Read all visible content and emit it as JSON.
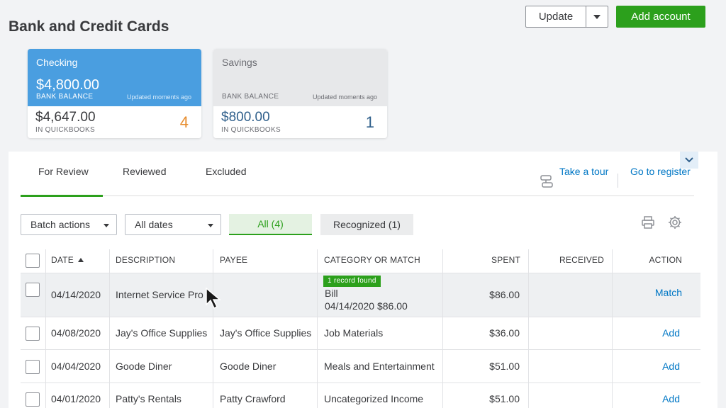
{
  "header": {
    "title": "Bank and Credit Cards",
    "update_label": "Update",
    "add_account_label": "Add account"
  },
  "accounts": [
    {
      "name": "Checking",
      "bank_balance": "$4,800.00",
      "bank_balance_label": "BANK BALANCE",
      "updated": "Updated moments ago",
      "quickbooks_balance": "$4,647.00",
      "quickbooks_label": "IN QUICKBOOKS",
      "count": "4"
    },
    {
      "name": "Savings",
      "bank_balance_label": "BANK BALANCE",
      "updated": "Updated moments ago",
      "quickbooks_balance": "$800.00",
      "quickbooks_label": "IN QUICKBOOKS",
      "count": "1"
    }
  ],
  "tabs": [
    {
      "label": "For Review",
      "active": true
    },
    {
      "label": "Reviewed"
    },
    {
      "label": "Excluded"
    }
  ],
  "links": {
    "tour": "Take a tour",
    "register": "Go to register"
  },
  "filters": {
    "batch_actions": "Batch actions",
    "dates": "All dates",
    "all": "All (4)",
    "recognized": "Recognized (1)"
  },
  "table": {
    "headers": [
      "DATE",
      "DESCRIPTION",
      "PAYEE",
      "CATEGORY OR MATCH",
      "SPENT",
      "RECEIVED",
      "ACTION"
    ],
    "rows": [
      {
        "date": "04/14/2020",
        "description": "Internet Service Pro",
        "payee": "",
        "badge": "1 record found",
        "category": "Bill",
        "category_detail": "04/14/2020 $86.00",
        "spent": "$86.00",
        "received": "",
        "action": "Match"
      },
      {
        "date": "04/08/2020",
        "description": "Jay's Office Supplies",
        "payee": "Jay's Office Supplies",
        "category": "Job Materials",
        "spent": "$36.00",
        "received": "",
        "action": "Add"
      },
      {
        "date": "04/04/2020",
        "description": "Goode Diner",
        "payee": "Goode Diner",
        "category": "Meals and Entertainment",
        "spent": "$51.00",
        "received": "",
        "action": "Add"
      },
      {
        "date": "04/01/2020",
        "description": "Patty's Rentals",
        "payee": "Patty Crawford",
        "category": "Uncategorized Income",
        "spent": "$51.00",
        "received": "",
        "action": "Add"
      }
    ]
  },
  "colors": {
    "brand_green": "#2ca01c",
    "link_blue": "#0077c5",
    "checking_blue": "#4a9ee0",
    "count_orange": "#e78c2d"
  },
  "icons": [
    "chevron-down-icon",
    "tour-icon",
    "print-icon",
    "gear-icon",
    "sort-up-icon",
    "mouse-cursor-icon"
  ]
}
